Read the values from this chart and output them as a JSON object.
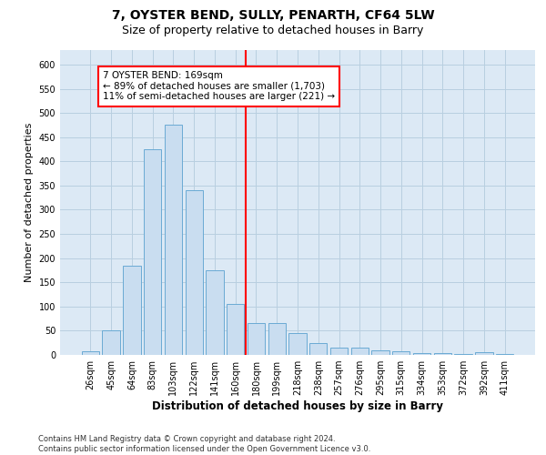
{
  "title1": "7, OYSTER BEND, SULLY, PENARTH, CF64 5LW",
  "title2": "Size of property relative to detached houses in Barry",
  "xlabel": "Distribution of detached houses by size in Barry",
  "ylabel": "Number of detached properties",
  "categories": [
    "26sqm",
    "45sqm",
    "64sqm",
    "83sqm",
    "103sqm",
    "122sqm",
    "141sqm",
    "160sqm",
    "180sqm",
    "199sqm",
    "218sqm",
    "238sqm",
    "257sqm",
    "276sqm",
    "295sqm",
    "315sqm",
    "334sqm",
    "353sqm",
    "372sqm",
    "392sqm",
    "411sqm"
  ],
  "values": [
    8,
    50,
    185,
    425,
    475,
    340,
    175,
    105,
    65,
    65,
    45,
    25,
    15,
    15,
    10,
    8,
    4,
    3,
    2,
    5,
    2
  ],
  "bar_color": "#c9ddf0",
  "bar_edge_color": "#6aaad4",
  "vline_color": "red",
  "annotation_text": "7 OYSTER BEND: 169sqm\n← 89% of detached houses are smaller (1,703)\n11% of semi-detached houses are larger (221) →",
  "annotation_box_color": "white",
  "annotation_box_edge": "red",
  "ylim": [
    0,
    630
  ],
  "yticks": [
    0,
    50,
    100,
    150,
    200,
    250,
    300,
    350,
    400,
    450,
    500,
    550,
    600
  ],
  "grid_color": "#b8cfe0",
  "background_color": "#dce9f5",
  "footnote": "Contains HM Land Registry data © Crown copyright and database right 2024.\nContains public sector information licensed under the Open Government Licence v3.0.",
  "title1_fontsize": 10,
  "title2_fontsize": 9,
  "xlabel_fontsize": 8.5,
  "ylabel_fontsize": 8,
  "tick_fontsize": 7,
  "annot_fontsize": 7.5,
  "footnote_fontsize": 6
}
